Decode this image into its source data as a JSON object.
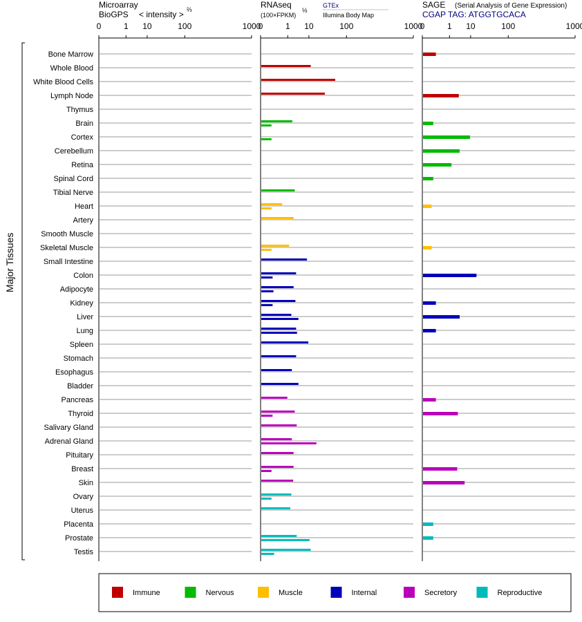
{
  "headers": {
    "microarray": {
      "line1": "Microarray",
      "line2": "BioGPS",
      "line2b": "< intensity >",
      "sup": "⅔"
    },
    "rnaseq": {
      "line1": "RNAseq",
      "line2": "(100×FPKM)",
      "sup": "½",
      "source1": "GTEx",
      "source2": "Illumina Body Map"
    },
    "sage": {
      "line1": "SAGE",
      "line1b": "(Serial Analysis of Gene Expression)",
      "line2": "CGAP  TAG: ATGGTGCACA"
    }
  },
  "y_group_label": "Major Tissues",
  "colors": {
    "Immune": "#c00000",
    "Nervous": "#00bb00",
    "Muscle": "#ffbf00",
    "Internal": "#0000bb",
    "Secretory": "#bb00bb",
    "Reproductive": "#00bbbb"
  },
  "chart_data": {
    "type": "bar",
    "x_scale": "power-compressed (tick labels 0, 1, 10, 100, 1000)",
    "x_ticks": [
      0,
      1,
      10,
      100,
      1000
    ],
    "xlim": [
      0,
      1000
    ],
    "categories": [
      "Bone Marrow",
      "Whole Blood",
      "White Blood Cells",
      "Lymph Node",
      "Thymus",
      "Brain",
      "Cortex",
      "Cerebellum",
      "Retina",
      "Spinal Cord",
      "Tibial Nerve",
      "Heart",
      "Artery",
      "Smooth Muscle",
      "Skeletal Muscle",
      "Small Intestine",
      "Colon",
      "Adipocyte",
      "Kidney",
      "Liver",
      "Lung",
      "Spleen",
      "Stomach",
      "Esophagus",
      "Bladder",
      "Pancreas",
      "Thyroid",
      "Salivary Gland",
      "Adrenal Gland",
      "Pituitary",
      "Breast",
      "Skin",
      "Ovary",
      "Uterus",
      "Placenta",
      "Prostate",
      "Testis"
    ],
    "groups": [
      "Immune",
      "Immune",
      "Immune",
      "Immune",
      "Immune",
      "Nervous",
      "Nervous",
      "Nervous",
      "Nervous",
      "Nervous",
      "Nervous",
      "Muscle",
      "Muscle",
      "Muscle",
      "Muscle",
      "Internal",
      "Internal",
      "Internal",
      "Internal",
      "Internal",
      "Internal",
      "Internal",
      "Internal",
      "Internal",
      "Internal",
      "Secretory",
      "Secretory",
      "Secretory",
      "Secretory",
      "Secretory",
      "Secretory",
      "Secretory",
      "Reproductive",
      "Reproductive",
      "Reproductive",
      "Reproductive",
      "Reproductive"
    ],
    "panels": [
      {
        "name": "Microarray",
        "series": [
          {
            "values": [
              0,
              0,
              0,
              0,
              0,
              0,
              0,
              0,
              0,
              0,
              0,
              0,
              0,
              0,
              0,
              0,
              0,
              0,
              0,
              0,
              0,
              0,
              0,
              0,
              0,
              0,
              0,
              0,
              0,
              0,
              0,
              0,
              0,
              0,
              0,
              0,
              0
            ]
          }
        ]
      },
      {
        "name": "RNAseq",
        "series": [
          {
            "values": [
              0,
              11,
              55,
              30,
              0,
              1.7,
              0,
              0,
              0,
              0,
              2.3,
              0.35,
              2.0,
              0,
              1.1,
              8,
              2.7,
              2.0,
              2.5,
              1.5,
              2.7,
              9,
              2.7,
              1.6,
              3.5,
              0.85,
              2.3,
              2.9,
              1.6,
              2.0,
              2.0,
              1.9,
              1.5,
              1.3,
              0,
              2.9,
              11
            ]
          },
          {
            "values": [
              0,
              0,
              0,
              0,
              0,
              0.02,
              0.02,
              0,
              0,
              0,
              0,
              0.02,
              0,
              0,
              0.02,
              0,
              0.03,
              0.04,
              0.03,
              3.5,
              3.0,
              0,
              0,
              0,
              0,
              0,
              0.03,
              0,
              17,
              0,
              0.02,
              0,
              0.02,
              0,
              0,
              10,
              0.05
            ]
          }
        ]
      },
      {
        "name": "SAGE",
        "series": [
          {
            "values": [
              0.05,
              0,
              0,
              3,
              0,
              0.02,
              9,
              3.3,
              1.2,
              0.02,
              0,
              0.01,
              0,
              0,
              0.01,
              0,
              15,
              0,
              0.05,
              3.3,
              0.05,
              0,
              0,
              0,
              0,
              0.05,
              2.7,
              0,
              0,
              0,
              2.5,
              5.5,
              0,
              0,
              0.02,
              0.02,
              0
            ]
          }
        ]
      }
    ],
    "legend": [
      "Immune",
      "Nervous",
      "Muscle",
      "Internal",
      "Secretory",
      "Reproductive"
    ]
  }
}
